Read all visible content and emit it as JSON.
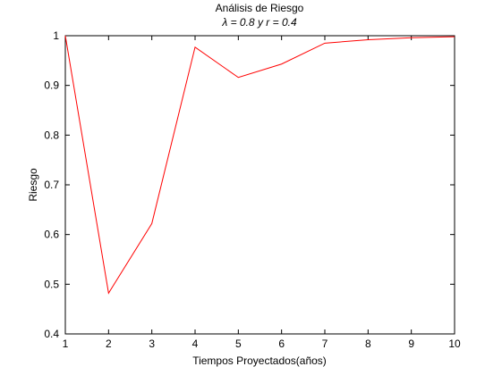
{
  "chart_data": {
    "type": "line",
    "title": "Análisis de Riesgo",
    "subtitle": "λ = 0.8 y r = 0.4",
    "xlabel": "Tiempos Proyectados(años)",
    "ylabel": "Riesgo",
    "xlim": [
      1,
      10
    ],
    "ylim": [
      0.4,
      1
    ],
    "xticks": [
      1,
      2,
      3,
      4,
      5,
      6,
      7,
      8,
      9,
      10
    ],
    "yticks": [
      0.4,
      0.5,
      0.6,
      0.7,
      0.8,
      0.9,
      1
    ],
    "grid": false,
    "series": [
      {
        "color": "#ff0000",
        "x": [
          1,
          2,
          3,
          4,
          5,
          6,
          7,
          8,
          9,
          10
        ],
        "values": [
          1.0,
          0.482,
          0.622,
          0.977,
          0.916,
          0.943,
          0.985,
          0.992,
          0.996,
          0.998
        ]
      }
    ]
  },
  "tick_format": {
    "y": [
      "0.4",
      "0.5",
      "0.6",
      "0.7",
      "0.8",
      "0.9",
      "1"
    ]
  }
}
